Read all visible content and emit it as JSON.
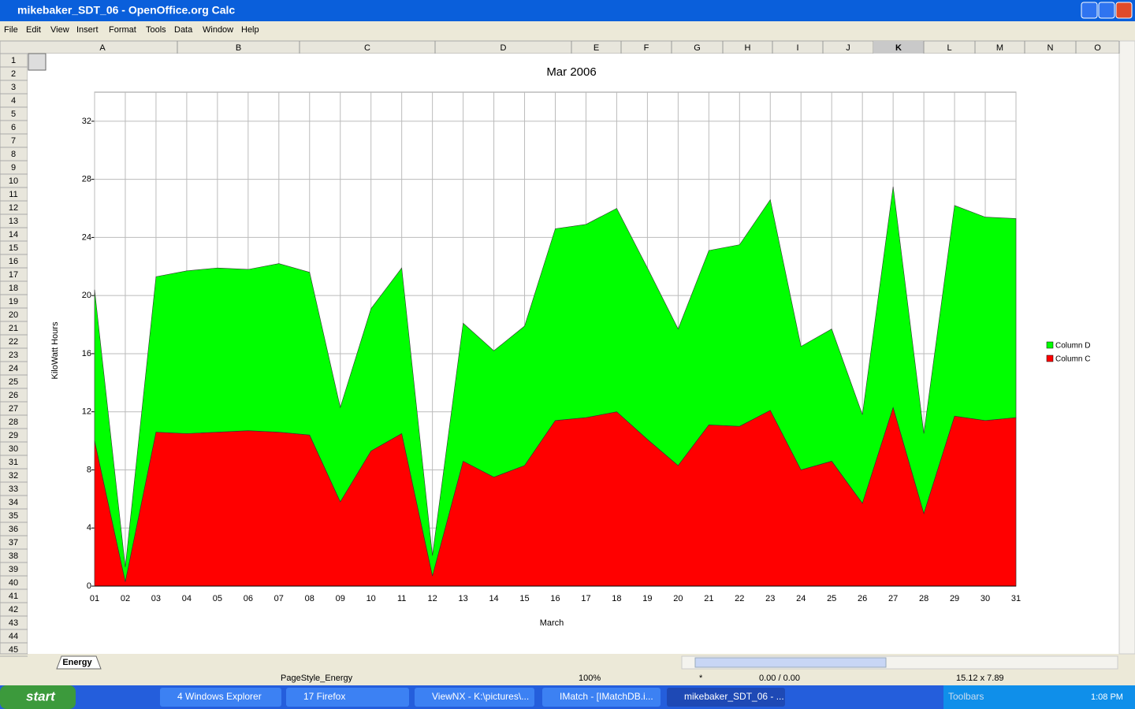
{
  "window": {
    "title": "mikebaker_SDT_06 - OpenOffice.org Calc",
    "menu": [
      "File",
      "Edit",
      "View",
      "Insert",
      "Format",
      "Tools",
      "Data",
      "Window",
      "Help"
    ]
  },
  "sheet": {
    "columns": [
      "A",
      "B",
      "C",
      "D",
      "E",
      "F",
      "G",
      "H",
      "I",
      "J",
      "K",
      "L",
      "M",
      "N",
      "O"
    ],
    "rows": [
      1,
      2,
      3,
      4,
      5,
      6,
      7,
      8,
      9,
      10,
      11,
      12,
      13,
      14,
      15,
      16,
      17,
      18,
      19,
      20,
      21,
      22,
      23,
      24,
      25,
      26,
      27,
      28,
      29,
      30,
      31,
      32,
      33,
      34,
      35,
      36,
      37,
      38,
      39,
      40,
      41,
      42,
      43,
      44,
      45
    ],
    "tab": "Energy"
  },
  "status_bar": {
    "page_style": "PageStyle_Energy",
    "zoom": "100%",
    "mode": "*",
    "position": "0.00 / 0.00",
    "size": "15.12 x 7.89"
  },
  "taskbar": {
    "start": "start",
    "items": [
      "4 Windows Explorer",
      "17 Firefox",
      "ViewNX - K:\\pictures\\...",
      "IMatch - [IMatchDB.i...",
      "mikebaker_SDT_06 - ..."
    ],
    "toolbars": "Toolbars",
    "clock": "1:08 PM"
  },
  "chart_data": {
    "type": "area",
    "stacked": true,
    "title": "Mar 2006",
    "x_label": "March",
    "y_label": "KiloWatt Hours",
    "categories": [
      "01",
      "02",
      "03",
      "04",
      "05",
      "06",
      "07",
      "08",
      "09",
      "10",
      "11",
      "12",
      "13",
      "14",
      "15",
      "16",
      "17",
      "18",
      "19",
      "20",
      "21",
      "22",
      "23",
      "24",
      "25",
      "26",
      "27",
      "28",
      "29",
      "30",
      "31"
    ],
    "series": [
      {
        "name": "Column C",
        "color": "#ff0000",
        "values": [
          10.0,
          0.3,
          10.6,
          10.5,
          10.6,
          10.7,
          10.6,
          10.4,
          5.8,
          9.3,
          10.5,
          0.7,
          8.6,
          7.5,
          8.3,
          11.4,
          11.6,
          12.0,
          10.1,
          8.3,
          11.1,
          11.0,
          12.1,
          8.0,
          8.6,
          5.7,
          12.3,
          5.0,
          11.7,
          11.4,
          11.6
        ]
      },
      {
        "name": "Column D",
        "color": "#00ff00",
        "values": [
          10.4,
          1.0,
          10.7,
          11.2,
          11.3,
          11.1,
          11.6,
          11.2,
          6.5,
          9.8,
          11.4,
          1.4,
          9.5,
          8.7,
          9.6,
          13.2,
          13.3,
          14.0,
          11.8,
          9.4,
          12.0,
          12.5,
          14.5,
          8.5,
          9.1,
          6.1,
          15.2,
          5.5,
          14.5,
          14.0,
          13.7
        ]
      }
    ],
    "ylim": [
      0,
      34
    ],
    "yticks": [
      0,
      4,
      8,
      12,
      16,
      20,
      24,
      28,
      32
    ],
    "grid": true,
    "legend": "right"
  }
}
